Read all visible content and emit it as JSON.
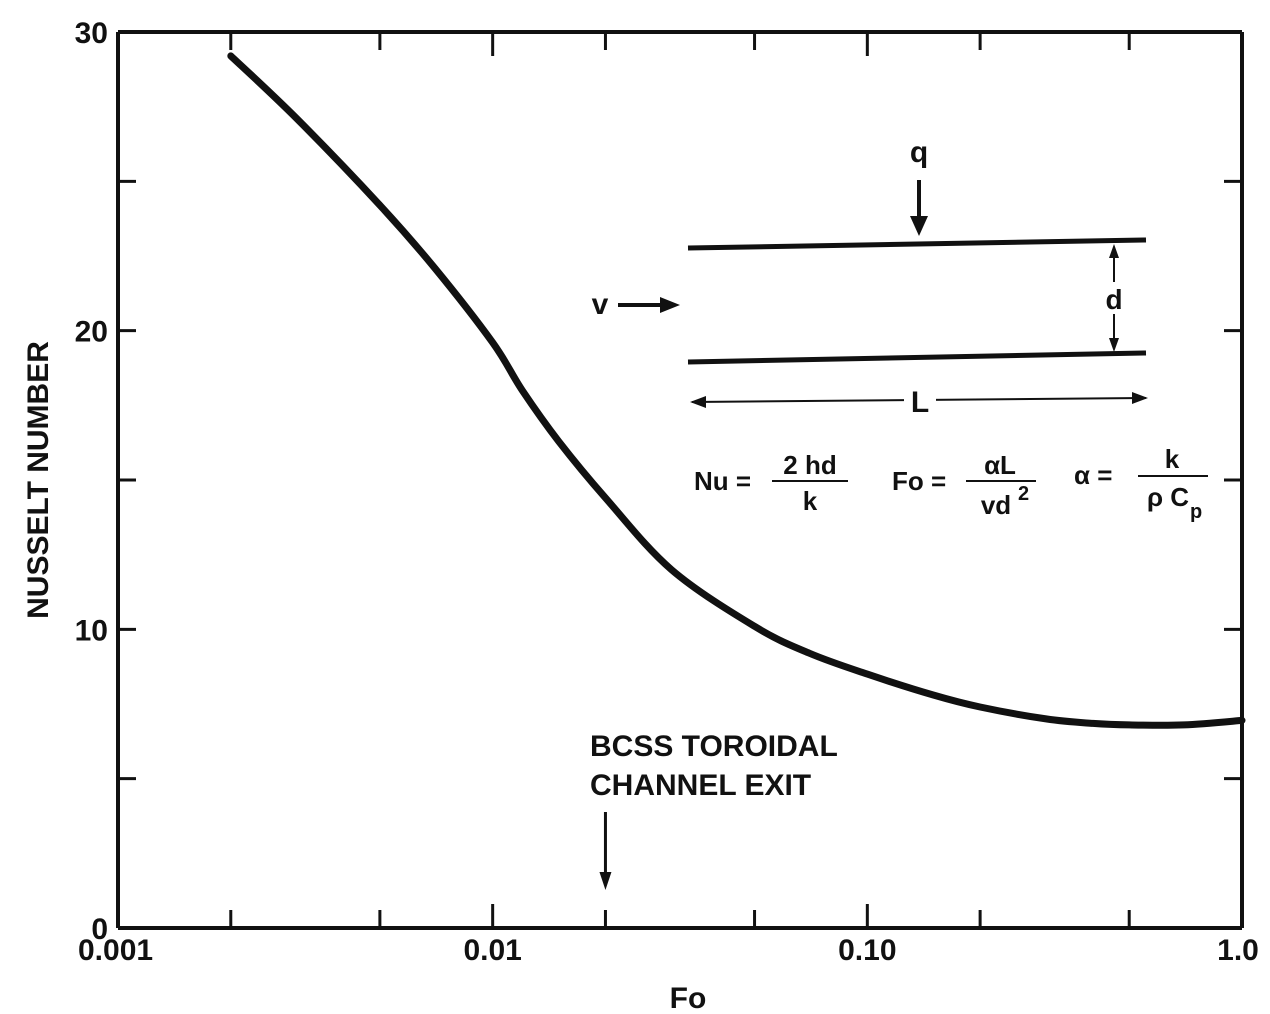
{
  "chart_data": {
    "type": "line",
    "title": "",
    "xlabel": "Fo",
    "ylabel": "NUSSELT NUMBER",
    "x_scale": "log",
    "xlim": [
      0.001,
      1.0
    ],
    "ylim": [
      0,
      30
    ],
    "x_ticks": [
      {
        "value": 0.001,
        "label": "0.001"
      },
      {
        "value": 0.01,
        "label": "0.01"
      },
      {
        "value": 0.1,
        "label": "0.10"
      },
      {
        "value": 1.0,
        "label": "1.0"
      }
    ],
    "y_ticks": [
      {
        "value": 0,
        "label": "0"
      },
      {
        "value": 10,
        "label": "10"
      },
      {
        "value": 20,
        "label": "20"
      },
      {
        "value": 30,
        "label": "30"
      }
    ],
    "grid": false,
    "series": [
      {
        "x": [
          0.002,
          0.003,
          0.005,
          0.007,
          0.01,
          0.012,
          0.015,
          0.02,
          0.03,
          0.05,
          0.07,
          0.1,
          0.15,
          0.2,
          0.3,
          0.4,
          0.5,
          0.7,
          1.0
        ],
        "y": [
          29.2,
          27.1,
          24.2,
          22.1,
          19.6,
          18.0,
          16.3,
          14.4,
          12.0,
          10.1,
          9.2,
          8.5,
          7.8,
          7.4,
          7.0,
          6.85,
          6.8,
          6.8,
          6.95
        ]
      }
    ],
    "annotations": [
      {
        "text_lines": [
          "BCSS TOROIDAL",
          "CHANNEL EXIT"
        ],
        "arrow_x": 0.02
      }
    ],
    "inset": {
      "q_label": "q",
      "v_label": "v",
      "d_label": "d",
      "L_label": "L",
      "eq_nu": {
        "lhs": "Nu =",
        "num": "2 hd",
        "den": "k"
      },
      "eq_fo": {
        "lhs": "Fo =",
        "num": "αL",
        "den": "vd",
        "den_sup": "2"
      },
      "eq_alpha": {
        "lhs": "α =",
        "num": "k",
        "den": "ρ C",
        "den_sub": "p"
      }
    }
  }
}
